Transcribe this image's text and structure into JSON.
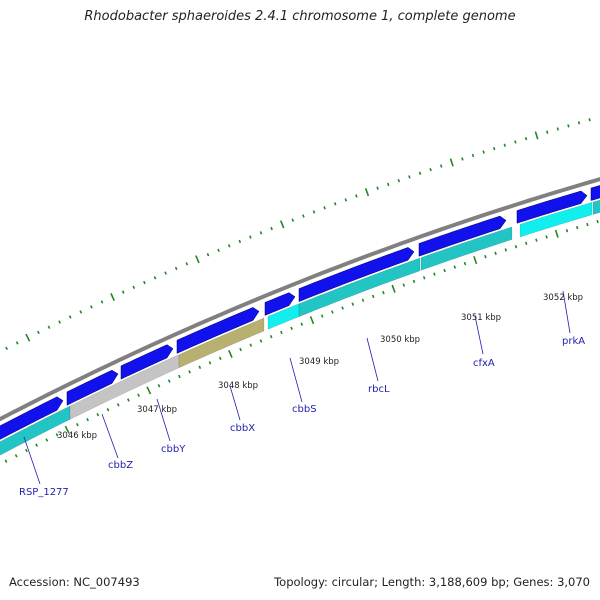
{
  "title": "Rhodobacter sphaeroides 2.4.1 chromosome 1, complete genome",
  "footer": {
    "accession": "Accession: NC_007493",
    "summary": "Topology: circular; Length: 3,188,609 bp; Genes: 3,070"
  },
  "colors": {
    "backbone": "#808080",
    "cds": "#1111ee",
    "gene_track": "#22c4c4",
    "gene_bright": "#11eeee",
    "gray_gene": "#c4c4c4",
    "olive_gene": "#b8b070",
    "tick": "#228822",
    "label": "#1f1fae"
  },
  "kbp_ticks": [
    {
      "label": "3046 kbp"
    },
    {
      "label": "3047 kbp"
    },
    {
      "label": "3048 kbp"
    },
    {
      "label": "3049 kbp"
    },
    {
      "label": "3050 kbp"
    },
    {
      "label": "3051 kbp"
    },
    {
      "label": "3052 kbp"
    }
  ],
  "genes": [
    {
      "name": "RSP_1277"
    },
    {
      "name": "cbbZ"
    },
    {
      "name": "cbbY"
    },
    {
      "name": "cbbX"
    },
    {
      "name": "cbbS"
    },
    {
      "name": "rbcL"
    },
    {
      "name": "cfxA"
    },
    {
      "name": "prkA"
    }
  ]
}
